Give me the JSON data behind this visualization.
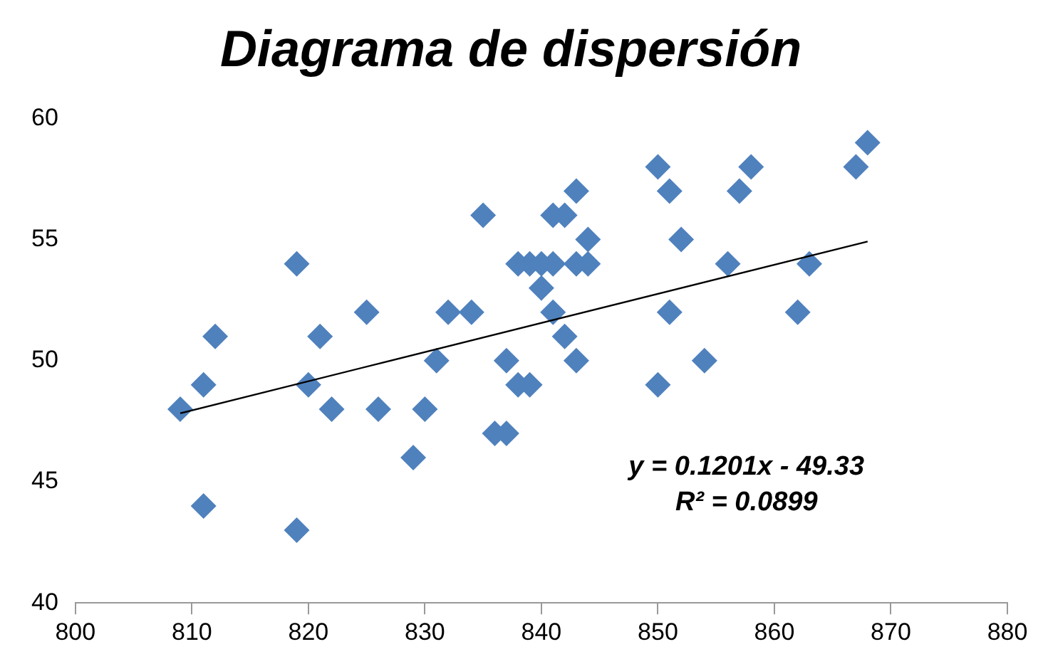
{
  "chart_data": {
    "type": "scatter",
    "title": "Diagrama de dispersión",
    "xlim": [
      800,
      880
    ],
    "xticks": [
      800,
      810,
      820,
      830,
      840,
      850,
      860,
      870,
      880
    ],
    "ylim": [
      40,
      60
    ],
    "yticks": [
      40,
      45,
      50,
      55,
      60
    ],
    "grid": false,
    "legend": false,
    "marker": "diamond",
    "series": [
      {
        "type": "scatter",
        "color": "#4f81bd",
        "x": [
          809,
          811,
          811,
          812,
          819,
          819,
          820,
          821,
          822,
          825,
          826,
          829,
          830,
          831,
          832,
          834,
          835,
          836,
          837,
          837,
          838,
          838,
          839,
          839,
          840,
          840,
          841,
          841,
          841,
          842,
          842,
          843,
          843,
          843,
          844,
          844,
          850,
          850,
          851,
          851,
          852,
          854,
          856,
          857,
          858,
          862,
          863,
          867,
          868
        ],
        "values": [
          48,
          49,
          44,
          51,
          54,
          43,
          49,
          51,
          48,
          52,
          48,
          46,
          48,
          50,
          52,
          52,
          56,
          47,
          47,
          50,
          49,
          54,
          49,
          54,
          53,
          54,
          56,
          52,
          54,
          56,
          51,
          57,
          50,
          54,
          55,
          54,
          58,
          49,
          57,
          52,
          55,
          50,
          54,
          57,
          58,
          52,
          54,
          58,
          59
        ]
      },
      {
        "type": "line",
        "color": "#000000",
        "marker": "none",
        "x": [
          809,
          868
        ],
        "values": [
          47.83,
          54.92
        ]
      }
    ],
    "annotations": [
      "y = 0.1201x - 49.33",
      "R² = 0.0899"
    ]
  }
}
